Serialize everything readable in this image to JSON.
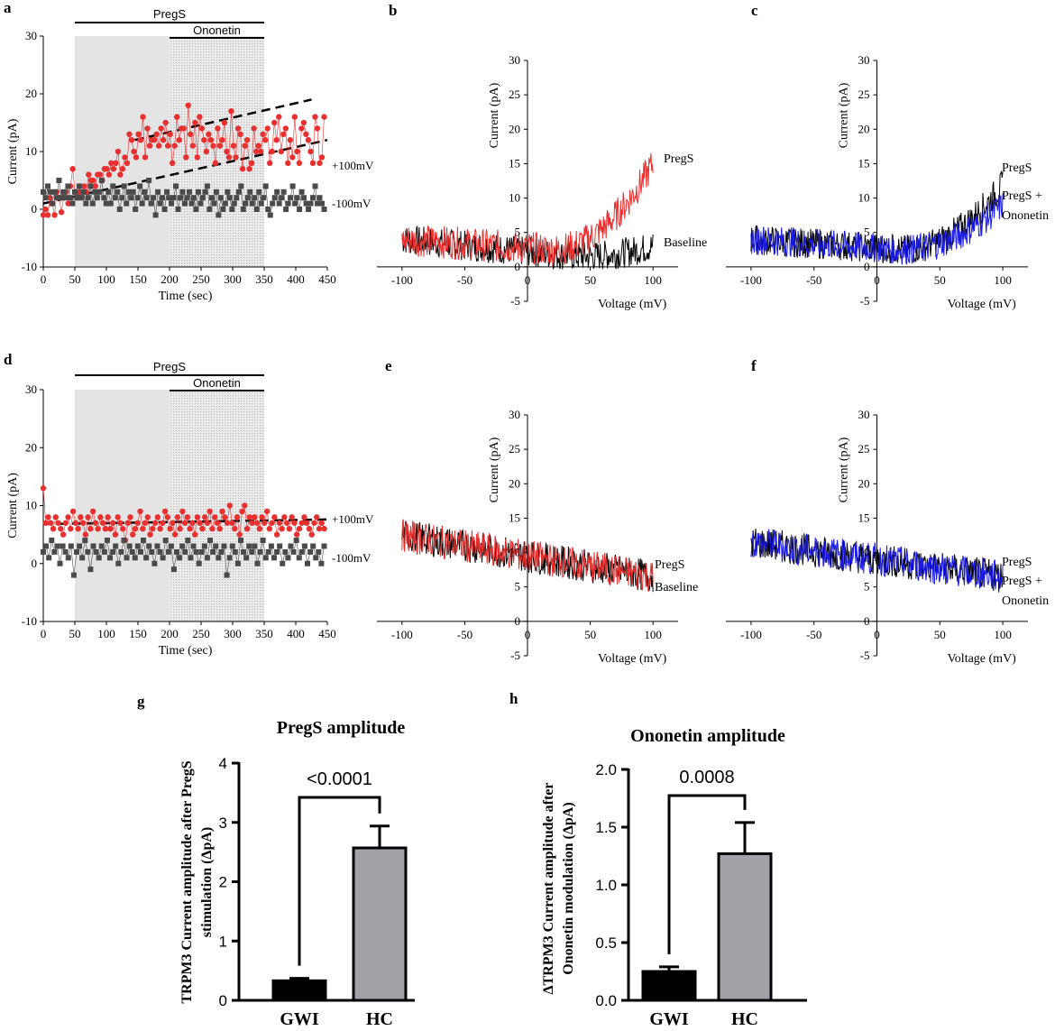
{
  "colors": {
    "red": "#e8312f",
    "black": "#000000",
    "blue": "#1a1ae6",
    "gray_marker": "#4a4a4a",
    "shade": "#e4e4e4",
    "bar_gwi": "#000000",
    "bar_hc": "#a1a1a8"
  },
  "chart_data": [
    {
      "id": "a",
      "panel_label": "a",
      "type": "scatter",
      "xlabel": "Time (sec)",
      "ylabel": "Current (pA)",
      "xlim": [
        0,
        450
      ],
      "ylim": [
        -10,
        30
      ],
      "xticks": [
        "0",
        "50",
        "100",
        "150",
        "200",
        "250",
        "300",
        "350",
        "400",
        "450"
      ],
      "yticks": [
        "-10",
        "0",
        "10",
        "20",
        "30"
      ],
      "bars": {
        "pregs": "PregS",
        "ononetin": "Ononetin"
      },
      "shaded": [
        {
          "from": 50,
          "to": 200,
          "pattern": "solid"
        },
        {
          "from": 200,
          "to": 350,
          "pattern": "dotted"
        }
      ],
      "series": [
        {
          "name": "+100mV",
          "color": "red",
          "marker": "circle",
          "values": [
            -1,
            0,
            -1,
            2,
            1,
            -1,
            3,
            2,
            -0.5,
            2,
            3,
            1,
            4,
            7,
            3,
            2,
            3,
            2,
            4,
            3,
            6,
            5,
            5,
            4,
            6,
            6,
            5,
            7,
            7,
            6,
            8,
            7,
            8,
            10,
            6,
            7,
            9,
            8,
            13,
            12,
            10,
            9,
            13,
            12,
            16,
            9,
            14,
            11,
            12,
            12,
            13,
            11,
            14,
            12,
            15,
            11,
            13,
            8,
            11,
            16,
            12,
            14,
            14,
            9,
            18,
            13,
            11,
            15,
            9,
            16,
            14,
            12,
            10,
            13,
            12,
            11,
            8,
            14,
            11,
            12,
            15,
            10,
            9,
            17,
            11,
            9,
            14,
            13,
            7,
            11,
            12,
            7,
            8,
            14,
            10,
            11,
            10,
            13,
            12,
            14,
            8,
            10,
            15,
            12,
            16,
            10,
            13,
            14,
            8,
            12,
            9,
            16,
            10,
            8,
            14,
            15,
            13,
            12,
            10,
            8,
            16,
            14,
            8,
            9,
            16
          ]
        },
        {
          "name": "-100mV",
          "color": "gray_marker",
          "marker": "square",
          "values": [
            3,
            2,
            4,
            3,
            1,
            3,
            2,
            5,
            2,
            3,
            2,
            4,
            2,
            1,
            3,
            2,
            4,
            2,
            3,
            1,
            2,
            4,
            1,
            3,
            2,
            3,
            5,
            2,
            1,
            3,
            1,
            4,
            2,
            3,
            0,
            2,
            4,
            1,
            3,
            2,
            3,
            0,
            2,
            4,
            1,
            3,
            2,
            5,
            1,
            2,
            -1,
            3,
            1,
            2,
            0,
            3,
            2,
            1,
            2,
            4,
            0,
            2,
            3,
            1,
            2,
            3,
            1,
            2,
            0,
            3,
            1,
            2,
            3,
            4,
            0,
            2,
            1,
            3,
            -1,
            2,
            0,
            1,
            3,
            2,
            0,
            1,
            2,
            3,
            4,
            0,
            1,
            2,
            3,
            1,
            2,
            0,
            3,
            1,
            2,
            4,
            0,
            -1,
            1,
            2,
            3,
            1,
            2,
            3,
            0,
            1,
            2,
            4,
            1,
            2,
            0,
            3,
            2,
            1,
            0,
            1,
            2,
            4,
            1,
            2,
            1,
            0
          ]
        }
      ],
      "series_labels": [
        "+100mV",
        "-100mV"
      ],
      "trendlines": [
        {
          "x": [
            0,
            450
          ],
          "y": [
            1,
            12
          ]
        },
        {
          "x": [
            145,
            425
          ],
          "y": [
            12,
            19
          ]
        }
      ]
    },
    {
      "id": "b",
      "panel_label": "b",
      "type": "line",
      "xlabel": "Voltage (mV)",
      "ylabel": "Current (pA)",
      "xlim": [
        -120,
        120
      ],
      "ylim": [
        -5,
        30
      ],
      "xticks": [
        "-100",
        "-50",
        "0",
        "50",
        "100"
      ],
      "yticks": [
        "-5",
        "0",
        "5",
        "10",
        "15",
        "20",
        "25",
        "30"
      ],
      "series": [
        {
          "name": "Baseline",
          "color": "black",
          "start": 4,
          "min": 1.5,
          "min_at": 40,
          "end": 3,
          "noise": 2.2
        },
        {
          "name": "PregS",
          "color": "red",
          "start": 4,
          "min": 2.5,
          "min_at": 20,
          "end": 15,
          "noise": 2.4
        }
      ],
      "labels": [
        "PregS",
        "Baseline"
      ]
    },
    {
      "id": "c",
      "panel_label": "c",
      "type": "line",
      "xlabel": "Voltage (mV)",
      "ylabel": "Current (pA)",
      "xlim": [
        -120,
        120
      ],
      "ylim": [
        -5,
        30
      ],
      "xticks": [
        "-100",
        "-50",
        "0",
        "50",
        "100"
      ],
      "yticks": [
        "-5",
        "0",
        "5",
        "10",
        "15",
        "20",
        "25",
        "30"
      ],
      "series": [
        {
          "name": "PregS",
          "color": "black",
          "start": 4,
          "min": 2.5,
          "min_at": 20,
          "end": 12,
          "noise": 2.2
        },
        {
          "name": "PregS + Ononetin",
          "color": "blue",
          "start": 4,
          "min": 2.5,
          "min_at": 20,
          "end": 9,
          "noise": 2.2
        }
      ],
      "labels": [
        "PregS",
        "PregS +",
        "Ononetin"
      ]
    },
    {
      "id": "d",
      "panel_label": "d",
      "type": "scatter",
      "xlabel": "Time (sec)",
      "ylabel": "Current (pA)",
      "xlim": [
        0,
        450
      ],
      "ylim": [
        -10,
        30
      ],
      "xticks": [
        "0",
        "50",
        "100",
        "150",
        "200",
        "250",
        "300",
        "350",
        "400",
        "450"
      ],
      "yticks": [
        "-10",
        "0",
        "10",
        "20",
        "30"
      ],
      "bars": {
        "pregs": "PregS",
        "ononetin": "Ononetin"
      },
      "shaded": [
        {
          "from": 50,
          "to": 200,
          "pattern": "solid"
        },
        {
          "from": 200,
          "to": 350,
          "pattern": "dotted"
        }
      ],
      "series": [
        {
          "name": "+100mV",
          "color": "red",
          "marker": "circle",
          "values": [
            13,
            7,
            8,
            7,
            6,
            8,
            7,
            6,
            5,
            7,
            8,
            6,
            9,
            7,
            6,
            8,
            7,
            5,
            8,
            6,
            9,
            7,
            6,
            8,
            7,
            6,
            8,
            6,
            7,
            5,
            8,
            7,
            6,
            4,
            7,
            8,
            5,
            6,
            7,
            9,
            6,
            7,
            8,
            5,
            6,
            7,
            8,
            6,
            7,
            9,
            8,
            6,
            7,
            5,
            8,
            6,
            9,
            7,
            8,
            6,
            7,
            5,
            8,
            7,
            6,
            8,
            7,
            9,
            6,
            8,
            7,
            6,
            9,
            8,
            7,
            10,
            7,
            6,
            8,
            5,
            9,
            10,
            6,
            8,
            7,
            8,
            7,
            6,
            8,
            7,
            9,
            6,
            7,
            8,
            5,
            7,
            6,
            8,
            7,
            6,
            8,
            7,
            5,
            6,
            7,
            8,
            7,
            6,
            5,
            7,
            8,
            6,
            7,
            6
          ]
        },
        {
          "name": "-100mV",
          "color": "gray_marker",
          "marker": "square",
          "values": [
            2,
            3,
            1,
            4,
            2,
            3,
            0,
            3,
            2,
            1,
            3,
            -2,
            2,
            3,
            1,
            4,
            2,
            -1,
            3,
            2,
            1,
            3,
            2,
            4,
            1,
            2,
            3,
            0,
            2,
            4,
            1,
            3,
            2,
            1,
            3,
            2,
            4,
            1,
            3,
            2,
            0,
            3,
            2,
            1,
            4,
            2,
            3,
            -1,
            2,
            1,
            3,
            2,
            4,
            1,
            3,
            2,
            0,
            2,
            3,
            1,
            4,
            2,
            3,
            1,
            2,
            3,
            -2,
            1,
            3,
            2,
            0,
            4,
            2,
            1,
            3,
            2,
            3,
            0,
            2,
            4,
            1,
            2,
            3,
            1,
            2,
            3,
            0,
            2,
            1,
            3,
            2,
            4,
            1,
            2,
            3,
            0,
            2,
            3,
            1,
            2,
            0,
            3
          ]
        }
      ],
      "series_labels": [
        "+100mV",
        "-100mV"
      ],
      "trendlines": [
        {
          "x": [
            0,
            450
          ],
          "y": [
            6.8,
            7.6
          ]
        }
      ]
    },
    {
      "id": "e",
      "panel_label": "e",
      "type": "line",
      "xlabel": "Voltage (mV)",
      "ylabel": "Current (pA)",
      "xlim": [
        -120,
        120
      ],
      "ylim": [
        -5,
        30
      ],
      "xticks": [
        "-100",
        "-50",
        "0",
        "50",
        "100"
      ],
      "yticks": [
        "-5",
        "0",
        "5",
        "10",
        "15",
        "20",
        "25",
        "30"
      ],
      "series": [
        {
          "name": "PregS",
          "color": "black",
          "start": 12.5,
          "min": 6.5,
          "min_at": 100,
          "end": 6.5,
          "noise": 2.4
        },
        {
          "name": "Baseline",
          "color": "red",
          "start": 12.5,
          "min": 6.5,
          "min_at": 100,
          "end": 6.5,
          "noise": 2.4
        }
      ],
      "labels": [
        "PregS",
        "Baseline"
      ]
    },
    {
      "id": "f",
      "panel_label": "f",
      "type": "line",
      "xlabel": "Voltage (mV)",
      "ylabel": "Current (pA)",
      "xlim": [
        -120,
        120
      ],
      "ylim": [
        -5,
        30
      ],
      "xticks": [
        "-100",
        "-50",
        "0",
        "50",
        "100"
      ],
      "yticks": [
        "-5",
        "0",
        "5",
        "10",
        "15",
        "20",
        "25",
        "30"
      ],
      "series": [
        {
          "name": "PregS",
          "color": "black",
          "start": 11.5,
          "min": 6.5,
          "min_at": 100,
          "end": 6.5,
          "noise": 2.4
        },
        {
          "name": "PregS + Ononetin",
          "color": "blue",
          "start": 11.5,
          "min": 6.5,
          "min_at": 100,
          "end": 6.5,
          "noise": 2.4
        }
      ],
      "labels": [
        "PregS",
        "PregS +",
        "Ononetin"
      ]
    },
    {
      "id": "g",
      "panel_label": "g",
      "type": "bar",
      "title": "PregS amplitude",
      "ylabel_lines": [
        "TRPM3 Current amplitude after PregS",
        "stimulation (ΔpA)"
      ],
      "categories": [
        "GWI",
        "HC"
      ],
      "values": [
        0.33,
        2.57
      ],
      "errors": [
        0.04,
        0.37
      ],
      "ylim": [
        0,
        4
      ],
      "yticks": [
        "0",
        "1",
        "2",
        "3",
        "4"
      ],
      "significance": "<0.0001"
    },
    {
      "id": "h",
      "panel_label": "h",
      "type": "bar",
      "title": "Ononetin amplitude",
      "ylabel_lines": [
        "ΔTRPM3 Current amplitude after",
        "Ononetin modulation (ΔpA)"
      ],
      "categories": [
        "GWI",
        "HC"
      ],
      "values": [
        0.25,
        1.27
      ],
      "errors": [
        0.04,
        0.27
      ],
      "ylim": [
        0,
        2.0
      ],
      "yticks": [
        "0.0",
        "0.5",
        "1.0",
        "1.5",
        "2.0"
      ],
      "significance": "0.0008"
    }
  ]
}
